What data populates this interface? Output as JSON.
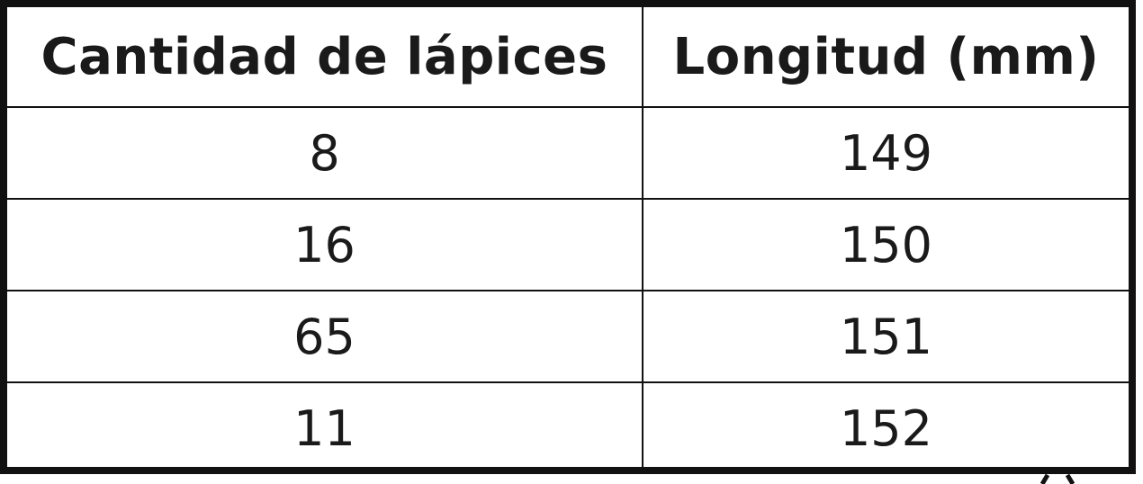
{
  "table": {
    "headers": [
      "Cantidad de lápices",
      "Longitud (mm)"
    ],
    "rows": [
      [
        "8",
        "149"
      ],
      [
        "16",
        "150"
      ],
      [
        "65",
        "151"
      ],
      [
        "11",
        "152"
      ]
    ]
  },
  "colors": {
    "border": "#111111",
    "text": "#1a1a1a",
    "background": "#ffffff"
  }
}
